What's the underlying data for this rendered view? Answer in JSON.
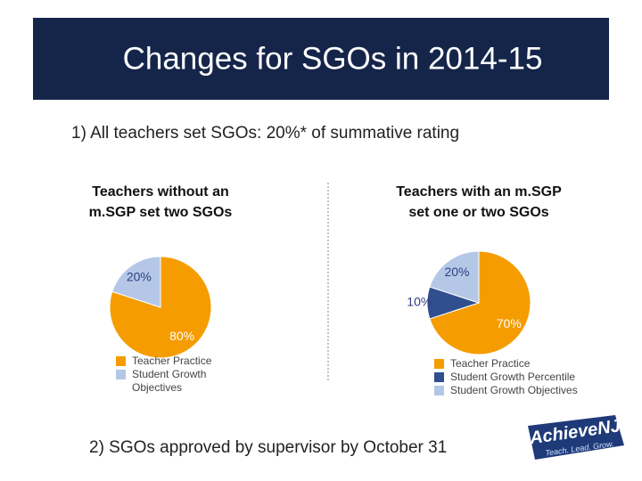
{
  "slide": {
    "title": "Changes for SGOs in 2014-15",
    "point1": "1) All teachers set SGOs: 20%* of summative rating",
    "point2": "2) SGOs approved by supervisor by October 31",
    "logo": "AchieveNJ",
    "logo_tagline": "Teach. Lead. Grow."
  },
  "chart_data": [
    {
      "type": "pie",
      "title": "Teachers without an m.SGP set two SGOs",
      "categories": [
        "Teacher Practice",
        "Student Growth Objectives"
      ],
      "values": [
        80,
        20
      ],
      "value_labels": [
        "80%",
        "20%"
      ],
      "colors": [
        "#f59c00",
        "#b4c7e7"
      ]
    },
    {
      "type": "pie",
      "title": "Teachers with an m.SGP set one or two SGOs",
      "categories": [
        "Teacher Practice",
        "Student Growth Percentile",
        "Student Growth Objectives"
      ],
      "values": [
        70,
        10,
        20
      ],
      "value_labels": [
        "70%",
        "10%",
        "20%"
      ],
      "colors": [
        "#f59c00",
        "#2f4f8f",
        "#b4c7e7"
      ]
    }
  ]
}
